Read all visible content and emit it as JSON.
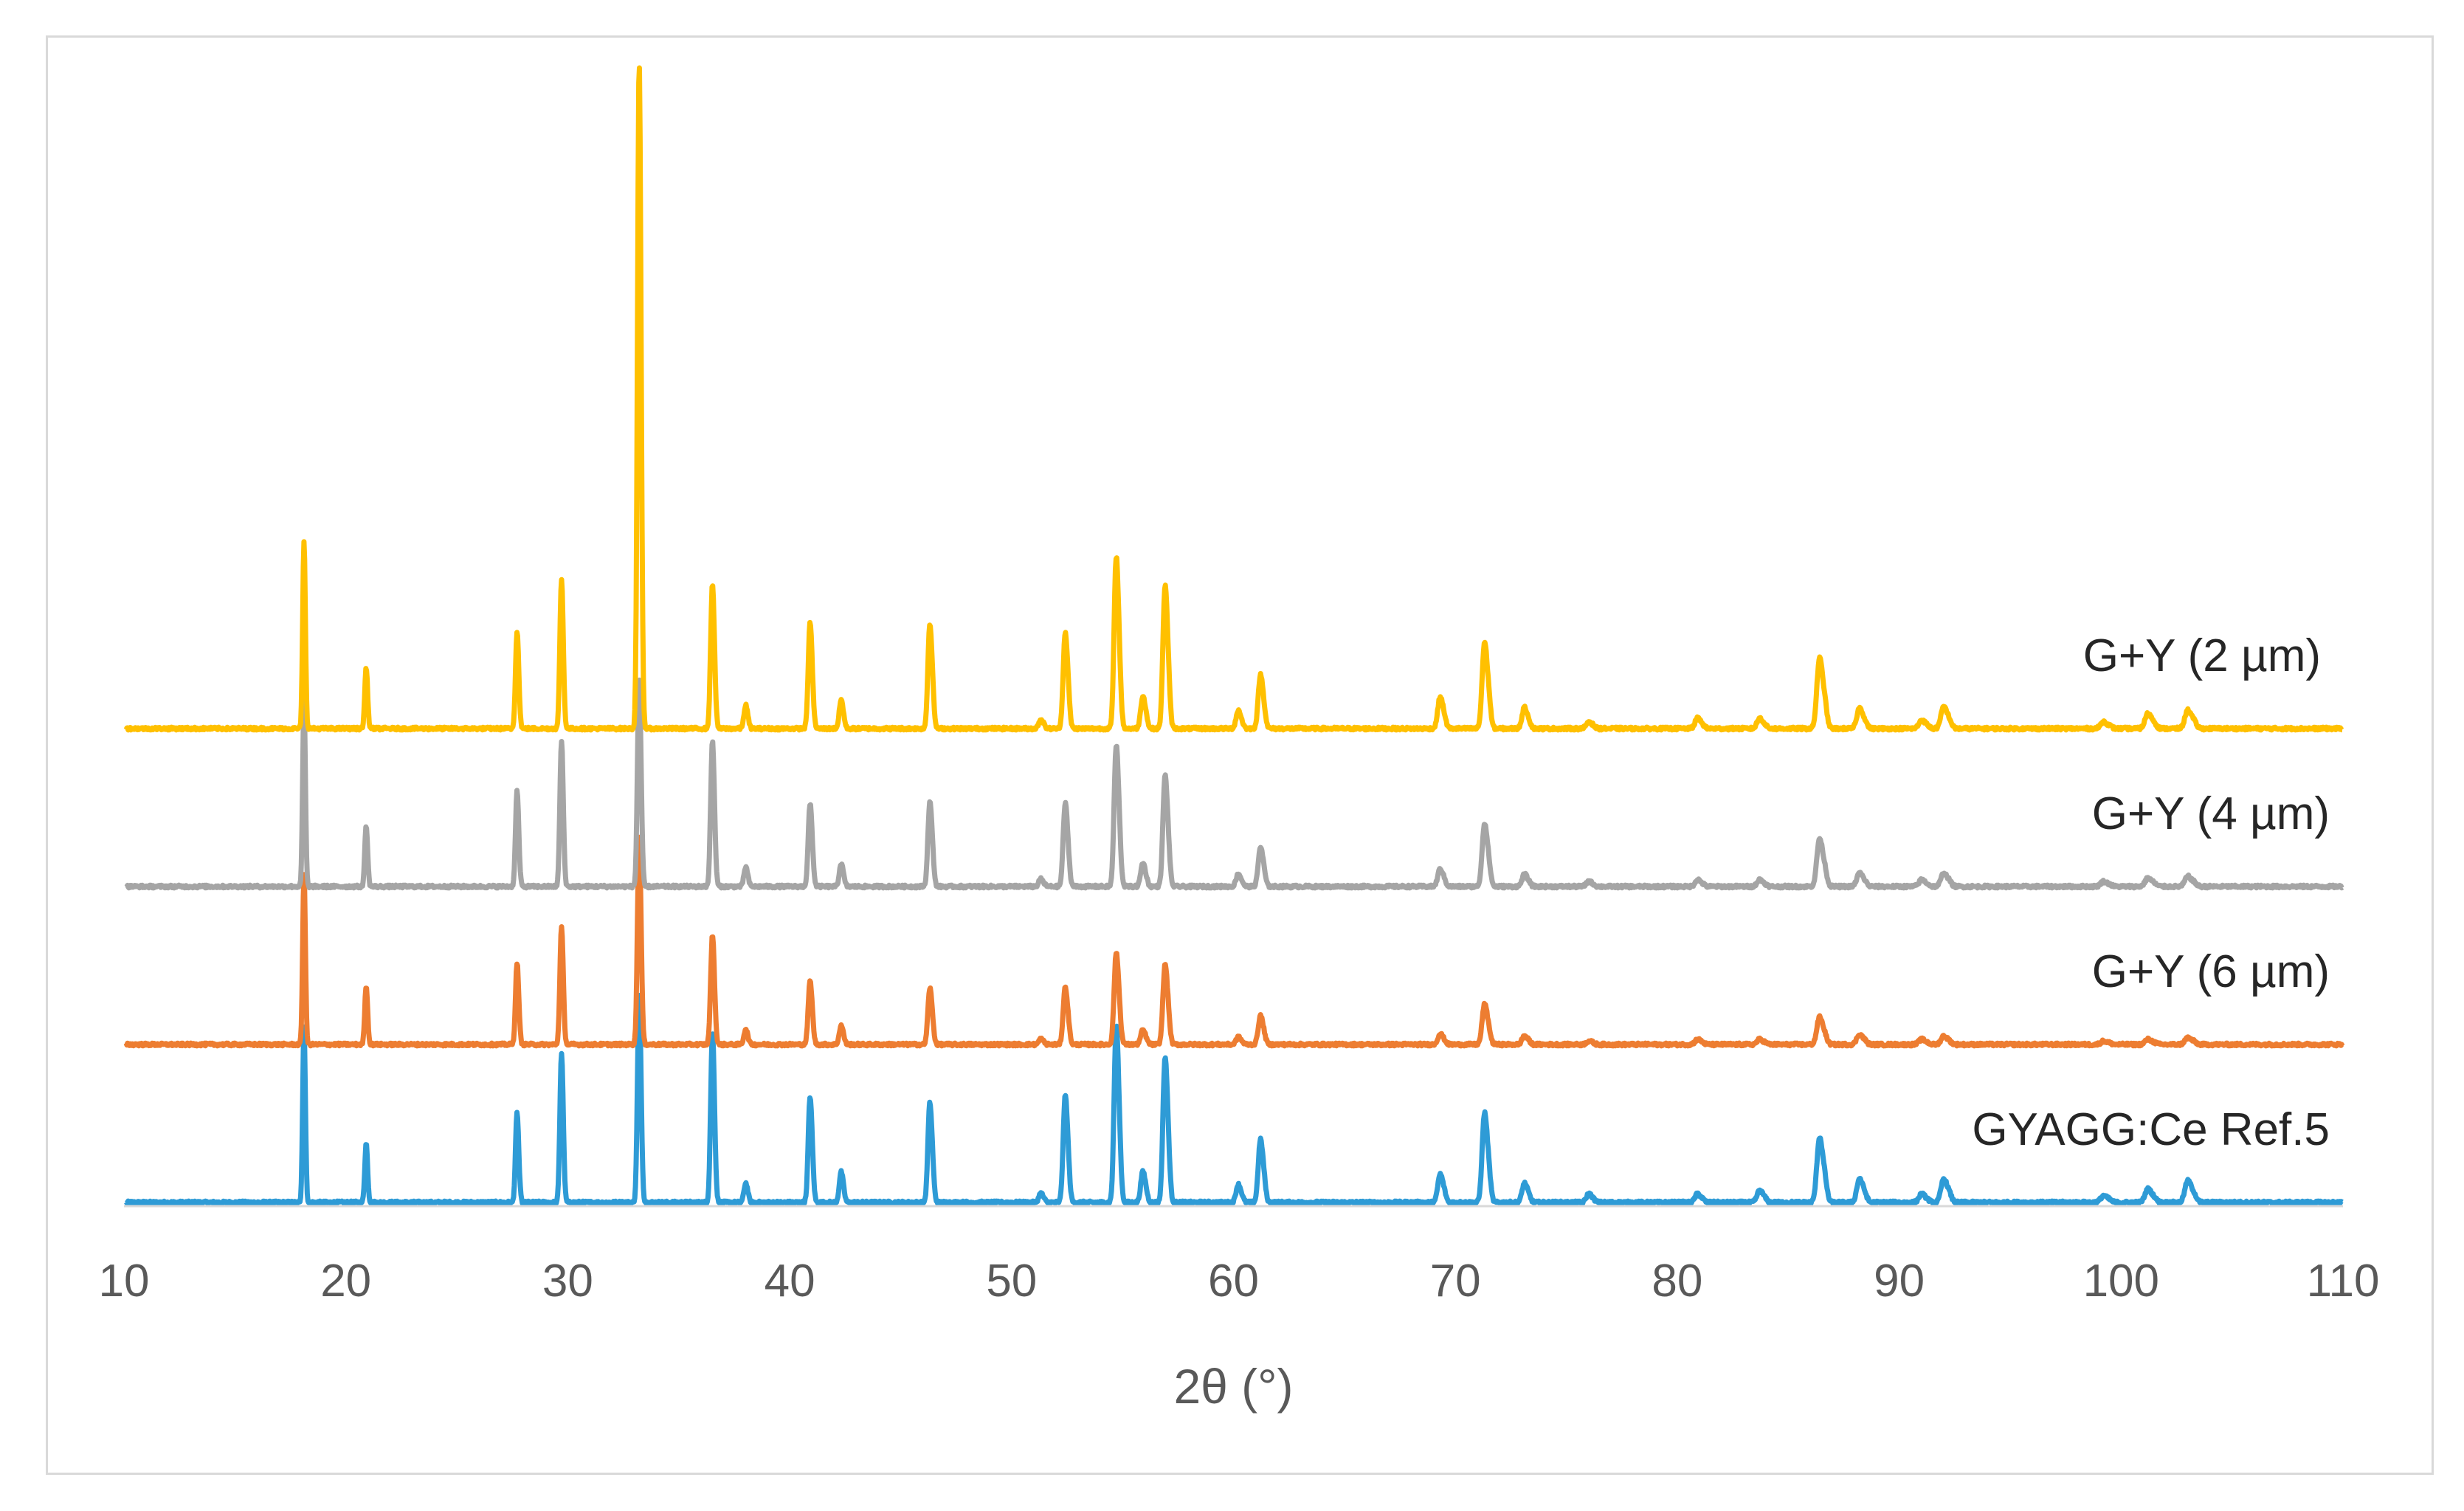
{
  "chart_data": {
    "type": "line",
    "title": "",
    "xlabel": "2θ (°)",
    "ylabel": "",
    "xlim": [
      10,
      110
    ],
    "xticks": [
      10,
      20,
      30,
      40,
      50,
      60,
      70,
      80,
      90,
      100,
      110
    ],
    "y_axis_shown": false,
    "grid": false,
    "legend": "none (labels placed at right end of each trace)",
    "peaks_2theta": [
      18.1,
      20.9,
      27.7,
      29.7,
      33.2,
      36.5,
      38.0,
      40.9,
      42.3,
      46.3,
      51.3,
      52.4,
      54.7,
      55.9,
      56.9,
      60.2,
      61.2,
      69.3,
      71.3,
      73.1,
      76.0,
      80.9,
      83.7,
      86.4,
      88.2,
      91.0,
      92.0,
      99.2,
      101.2,
      103.0
    ],
    "series": [
      {
        "name": "G+Y (2 µm)",
        "color": "#FFC000",
        "baseline": 3.0,
        "peak_heights": [
          0.87,
          0.29,
          0.48,
          0.74,
          3.35,
          0.74,
          0.12,
          0.55,
          0.15,
          0.56,
          0.05,
          0.52,
          0.94,
          0.18,
          0.79,
          0.1,
          0.3,
          0.18,
          0.49,
          0.12,
          0.04,
          0.06,
          0.06,
          0.41,
          0.12,
          0.05,
          0.13,
          0.04,
          0.09,
          0.11
        ]
      },
      {
        "name": "G+Y (4 µm)",
        "color": "#A5A5A5",
        "baseline": 2.0,
        "peak_heights": [
          0.87,
          0.29,
          0.47,
          0.72,
          1.05,
          0.74,
          0.1,
          0.43,
          0.12,
          0.45,
          0.04,
          0.45,
          0.77,
          0.13,
          0.61,
          0.07,
          0.22,
          0.1,
          0.36,
          0.07,
          0.03,
          0.04,
          0.04,
          0.28,
          0.08,
          0.04,
          0.08,
          0.03,
          0.05,
          0.06
        ]
      },
      {
        "name": "G+Y (6 µm)",
        "color": "#ED7D31",
        "baseline": 1.0,
        "peak_heights": [
          0.8,
          0.28,
          0.4,
          0.58,
          1.05,
          0.56,
          0.08,
          0.33,
          0.1,
          0.3,
          0.03,
          0.31,
          0.5,
          0.08,
          0.44,
          0.04,
          0.16,
          0.06,
          0.23,
          0.05,
          0.02,
          0.03,
          0.03,
          0.16,
          0.06,
          0.03,
          0.05,
          0.02,
          0.03,
          0.04
        ]
      },
      {
        "name": "GYAGG:Ce Ref.5",
        "color": "#2E9BD6",
        "baseline": 0.0,
        "peak_heights": [
          0.82,
          0.28,
          0.44,
          0.74,
          1.05,
          0.87,
          0.1,
          0.55,
          0.16,
          0.53,
          0.05,
          0.58,
          0.97,
          0.17,
          0.8,
          0.1,
          0.35,
          0.16,
          0.51,
          0.11,
          0.05,
          0.05,
          0.07,
          0.38,
          0.14,
          0.05,
          0.14,
          0.04,
          0.08,
          0.13
        ]
      }
    ]
  }
}
